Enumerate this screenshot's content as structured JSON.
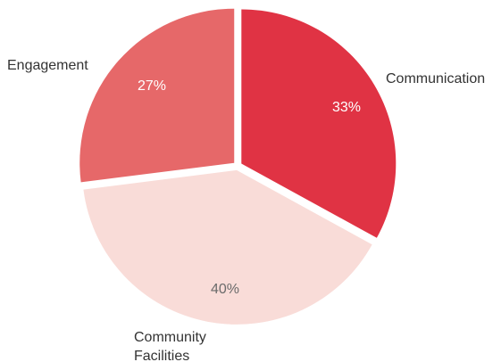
{
  "chart_data": {
    "type": "pie",
    "title": "",
    "slices": [
      {
        "label": "Communication",
        "value": 33,
        "value_label": "33%",
        "color": "#e03344",
        "value_label_color": "#ffffff"
      },
      {
        "label": "Community Facilities",
        "value": 40,
        "value_label": "40%",
        "color": "#f9dcd8",
        "value_label_color": "#6b6b6b"
      },
      {
        "label": "Engagement",
        "value": 27,
        "value_label": "27%",
        "color": "#e66869",
        "value_label_color": "#ffffff"
      }
    ],
    "start": "12 o'clock",
    "direction": "clockwise",
    "exploded": true,
    "legend": "none"
  }
}
